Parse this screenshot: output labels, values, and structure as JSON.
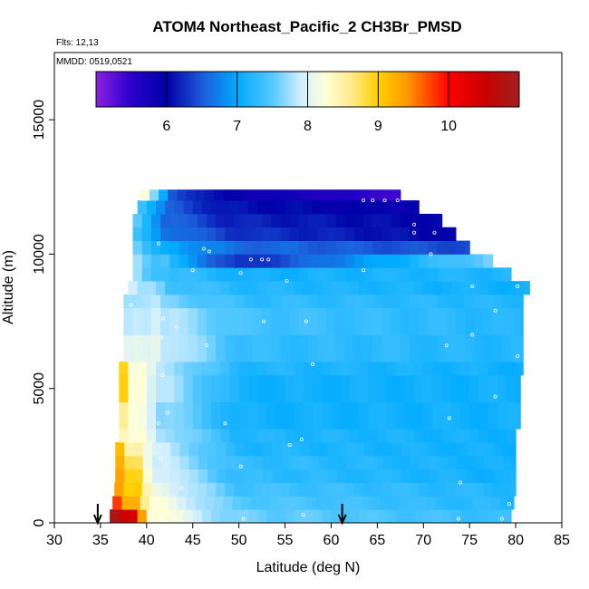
{
  "chart_data": {
    "type": "heatmap",
    "title": "ATOM4 Northeast_Pacific_2 CH3Br_PMSD",
    "flights_label": "Flts: 12,13",
    "dates_label": "MMDD: 0519,0521",
    "xlabel": "Latitude (deg N)",
    "ylabel": "Altitude (m)",
    "xlim": [
      30,
      85
    ],
    "ylim": [
      0,
      17500
    ],
    "x_ticks": [
      "30",
      "35",
      "40",
      "45",
      "50",
      "55",
      "60",
      "65",
      "70",
      "75",
      "80",
      "85"
    ],
    "y_ticks": [
      "0",
      "5000",
      "10000",
      "15000"
    ],
    "grid": false,
    "colorbar": {
      "range": [
        5.0,
        11.0
      ],
      "ticks": [
        "6",
        "7",
        "8",
        "9",
        "10"
      ],
      "placement": "top",
      "stops": [
        [
          5.0,
          "#8a20e0"
        ],
        [
          5.5,
          "#2a00cc"
        ],
        [
          6.0,
          "#0000a8"
        ],
        [
          6.5,
          "#1c5ad8"
        ],
        [
          7.0,
          "#00aaff"
        ],
        [
          7.5,
          "#55c8ff"
        ],
        [
          7.9,
          "#cfeeff"
        ],
        [
          8.25,
          "#ffffd8"
        ],
        [
          8.6,
          "#ffec90"
        ],
        [
          9.0,
          "#ffd000"
        ],
        [
          9.4,
          "#ff9a00"
        ],
        [
          10.0,
          "#ff0000"
        ],
        [
          10.5,
          "#c80000"
        ],
        [
          11.0,
          "#a02020"
        ]
      ]
    },
    "rows": [
      {
        "alt": [
          0,
          500
        ],
        "lat": [
          36.0,
          79.5
        ],
        "west": [
          10.8,
          10.4,
          9.4,
          8.3
        ],
        "mid": 7.6,
        "east": 7.3
      },
      {
        "alt": [
          500,
          1000
        ],
        "lat": [
          36.3,
          79.8
        ],
        "west": [
          9.8,
          9.3,
          8.6,
          8.2
        ],
        "mid": 7.5,
        "east": 7.2
      },
      {
        "alt": [
          1000,
          1500
        ],
        "lat": [
          36.5,
          80.0
        ],
        "west": [
          9.4,
          9.0,
          8.4,
          8.1
        ],
        "mid": 7.4,
        "east": 7.2
      },
      {
        "alt": [
          1500,
          2000
        ],
        "lat": [
          36.6,
          80.0
        ],
        "west": [
          9.3,
          8.9,
          8.3,
          8.0
        ],
        "mid": 7.3,
        "east": 7.1
      },
      {
        "alt": [
          2000,
          2500
        ],
        "lat": [
          36.6,
          80.0
        ],
        "west": [
          9.2,
          8.8,
          8.2,
          7.9
        ],
        "mid": 7.3,
        "east": 7.1
      },
      {
        "alt": [
          2500,
          3000
        ],
        "lat": [
          36.6,
          80.0
        ],
        "west": [
          9.2,
          8.5,
          8.1,
          7.9
        ],
        "mid": 7.2,
        "east": 7.1
      },
      {
        "alt": [
          3000,
          3500
        ],
        "lat": [
          37.0,
          80.0
        ],
        "west": [
          8.4,
          8.2,
          8.0,
          7.8
        ],
        "mid": 7.2,
        "east": 7.1
      },
      {
        "alt": [
          3500,
          4500
        ],
        "lat": [
          37.0,
          80.5
        ],
        "west": [
          8.5,
          8.2,
          8.0,
          7.7
        ],
        "mid": 7.1,
        "east": 7.1
      },
      {
        "alt": [
          4500,
          5500
        ],
        "lat": [
          37.0,
          80.5
        ],
        "west": [
          9.0,
          8.3,
          8.0,
          7.8
        ],
        "mid": 7.1,
        "east": 7.1
      },
      {
        "alt": [
          5500,
          6000
        ],
        "lat": [
          37.0,
          80.8
        ],
        "west": [
          9.0,
          8.2,
          8.0,
          7.8
        ],
        "mid": 7.2,
        "east": 7.1
      },
      {
        "alt": [
          6000,
          7000
        ],
        "lat": [
          37.5,
          80.8
        ],
        "west": [
          8.0,
          8.0,
          8.1,
          7.9
        ],
        "mid": 7.3,
        "east": 7.2
      },
      {
        "alt": [
          7000,
          8000
        ],
        "lat": [
          37.5,
          80.8
        ],
        "west": [
          7.8,
          7.9,
          8.0,
          7.8
        ],
        "mid": 7.4,
        "east": 7.2
      },
      {
        "alt": [
          8000,
          8500
        ],
        "lat": [
          37.5,
          80.8
        ],
        "west": [
          7.8,
          7.8,
          7.8,
          7.6
        ],
        "mid": 7.3,
        "east": 7.2
      },
      {
        "alt": [
          8500,
          9000
        ],
        "lat": [
          38.0,
          81.5
        ],
        "west": [
          7.9,
          7.7,
          7.6,
          7.4
        ],
        "mid": 7.2,
        "east": 7.1
      },
      {
        "alt": [
          9000,
          9500
        ],
        "lat": [
          38.5,
          79.5
        ],
        "west": [
          7.7,
          7.5,
          7.4,
          7.3
        ],
        "mid": 7.1,
        "east": 7.2
      },
      {
        "alt": [
          9500,
          10000
        ],
        "lat": [
          38.5,
          77.5
        ],
        "west": [
          7.8,
          7.6,
          7.4,
          7.1
        ],
        "mid": 6.2,
        "east": 7.6
      },
      {
        "alt": [
          10000,
          10500
        ],
        "lat": [
          38.5,
          75.0
        ],
        "west": [
          7.6,
          7.3,
          7.1,
          7.0
        ],
        "mid": 6.6,
        "east": 6.4
      },
      {
        "alt": [
          10500,
          11000
        ],
        "lat": [
          38.5,
          73.5
        ],
        "west": [
          7.3,
          7.1,
          6.9,
          6.7
        ],
        "mid": 6.3,
        "east": 6.0
      },
      {
        "alt": [
          11000,
          11500
        ],
        "lat": [
          38.5,
          72.0
        ],
        "west": [
          7.5,
          7.2,
          6.9,
          6.6
        ],
        "mid": 6.2,
        "east": 6.0
      },
      {
        "alt": [
          11500,
          12000
        ],
        "lat": [
          39.0,
          69.5
        ],
        "west": [
          7.4,
          7.1,
          6.8,
          6.5
        ],
        "mid": 6.1,
        "east": 5.9
      },
      {
        "alt": [
          12000,
          12400
        ],
        "lat": [
          39.3,
          67.5
        ],
        "west": [
          8.2,
          7.6,
          7.0,
          6.5
        ],
        "mid": 6.0,
        "east": 5.4
      }
    ],
    "samples": [
      [
        41.5,
        150
      ],
      [
        43.0,
        150
      ],
      [
        50.5,
        150
      ],
      [
        57.0,
        300
      ],
      [
        61.0,
        200
      ],
      [
        73.8,
        150
      ],
      [
        78.5,
        150
      ],
      [
        79.3,
        700
      ],
      [
        74.0,
        1500
      ],
      [
        43.8,
        1300
      ],
      [
        50.2,
        2100
      ],
      [
        41.5,
        2400
      ],
      [
        55.5,
        2900
      ],
      [
        56.8,
        3100
      ],
      [
        41.3,
        3700
      ],
      [
        48.5,
        3700
      ],
      [
        72.8,
        3900
      ],
      [
        42.3,
        4100
      ],
      [
        77.8,
        4700
      ],
      [
        41.7,
        5500
      ],
      [
        58.0,
        5900
      ],
      [
        80.2,
        6200
      ],
      [
        72.5,
        6600
      ],
      [
        46.5,
        6600
      ],
      [
        41.6,
        6900
      ],
      [
        75.3,
        7000
      ],
      [
        43.2,
        7300
      ],
      [
        52.7,
        7500
      ],
      [
        57.3,
        7500
      ],
      [
        41.8,
        7600
      ],
      [
        77.8,
        7900
      ],
      [
        38.3,
        8100
      ],
      [
        75.3,
        8800
      ],
      [
        80.2,
        8800
      ],
      [
        55.2,
        9000
      ],
      [
        50.2,
        9300
      ],
      [
        45.0,
        9400
      ],
      [
        63.5,
        9400
      ],
      [
        51.3,
        9800
      ],
      [
        52.5,
        9800
      ],
      [
        53.2,
        9800
      ],
      [
        41.3,
        10400
      ],
      [
        46.2,
        10200
      ],
      [
        46.8,
        10100
      ],
      [
        70.8,
        10000
      ],
      [
        69.0,
        10800
      ],
      [
        71.2,
        10800
      ],
      [
        69.0,
        11100
      ],
      [
        63.5,
        12000
      ],
      [
        64.5,
        12000
      ],
      [
        65.8,
        12000
      ],
      [
        67.2,
        12000
      ]
    ],
    "arrows_latitude": [
      34.7,
      61.2
    ]
  }
}
